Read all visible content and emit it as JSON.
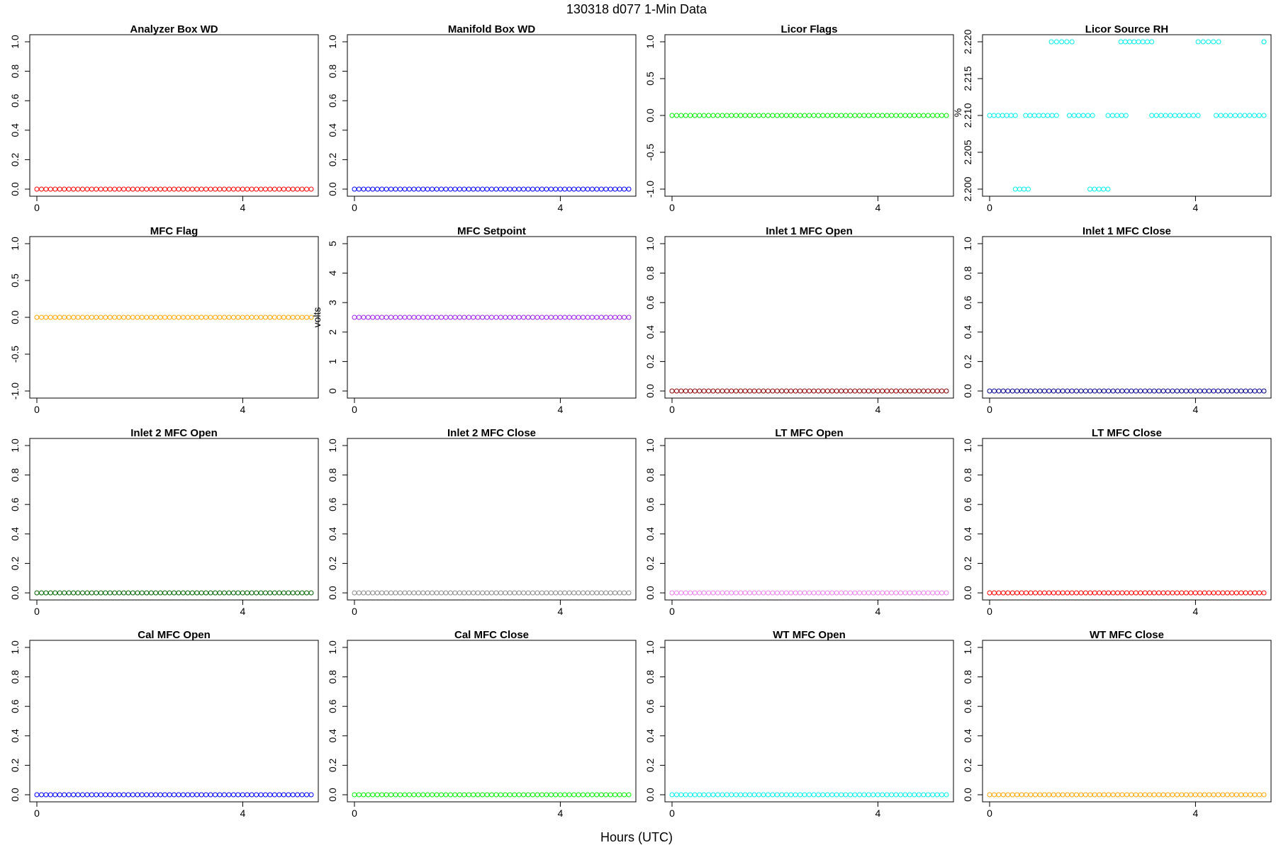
{
  "figure": {
    "title": "130318   d077   1-Min Data",
    "xlabel": "Hours (UTC)"
  },
  "chart_data": [
    {
      "type": "scatter",
      "title": "Analyzer Box WD",
      "ylabel": "",
      "ylim": [
        0,
        1
      ],
      "yticks": [
        0.0,
        0.2,
        0.4,
        0.6,
        0.8,
        1.0
      ],
      "ytick_labels": [
        "0.0",
        "0.2",
        "0.4",
        "0.6",
        "0.8",
        "1.0"
      ],
      "xlim": [
        0,
        5.33
      ],
      "xticks": [
        0,
        4
      ],
      "xtick_labels": [
        "0",
        "4"
      ],
      "color": "#ff0000",
      "series": [
        {
          "segments": [
            {
              "x0": 0.0,
              "x1": 5.33,
              "y": 0
            }
          ]
        }
      ]
    },
    {
      "type": "scatter",
      "title": "Manifold Box WD",
      "ylabel": "",
      "ylim": [
        0,
        1
      ],
      "yticks": [
        0.0,
        0.2,
        0.4,
        0.6,
        0.8,
        1.0
      ],
      "ytick_labels": [
        "0.0",
        "0.2",
        "0.4",
        "0.6",
        "0.8",
        "1.0"
      ],
      "xlim": [
        0,
        5.33
      ],
      "xticks": [
        0,
        4
      ],
      "xtick_labels": [
        "0",
        "4"
      ],
      "color": "#0000ff",
      "series": [
        {
          "segments": [
            {
              "x0": 0.0,
              "x1": 5.33,
              "y": 0
            }
          ]
        }
      ]
    },
    {
      "type": "scatter",
      "title": "Licor Flags",
      "ylabel": "",
      "ylim": [
        -1,
        1
      ],
      "yticks": [
        -1.0,
        -0.5,
        0.0,
        0.5,
        1.0
      ],
      "ytick_labels": [
        "-1.0",
        "-0.5",
        "0.0",
        "0.5",
        "1.0"
      ],
      "xlim": [
        0,
        5.33
      ],
      "xticks": [
        0,
        4
      ],
      "xtick_labels": [
        "0",
        "4"
      ],
      "color": "#00ee00",
      "series": [
        {
          "segments": [
            {
              "x0": 0.0,
              "x1": 5.33,
              "y": 0
            }
          ]
        }
      ]
    },
    {
      "type": "scatter",
      "title": "Licor Source RH",
      "ylabel": "%",
      "ylim": [
        2.2,
        2.22
      ],
      "yticks": [
        2.2,
        2.205,
        2.21,
        2.215,
        2.22
      ],
      "ytick_labels": [
        "2.200",
        "2.205",
        "2.210",
        "2.215",
        "2.220"
      ],
      "xlim": [
        0,
        5.33
      ],
      "xticks": [
        0,
        4
      ],
      "xtick_labels": [
        "0",
        "4"
      ],
      "color": "#00eeee",
      "series": [
        {
          "segments": [
            {
              "x0": 0.0,
              "x1": 0.5,
              "y": 2.21
            },
            {
              "x0": 0.5,
              "x1": 0.75,
              "y": 2.2
            },
            {
              "x0": 0.7,
              "x1": 1.3,
              "y": 2.21
            },
            {
              "x0": 1.2,
              "x1": 1.6,
              "y": 2.22
            },
            {
              "x0": 1.55,
              "x1": 2.0,
              "y": 2.21
            },
            {
              "x0": 1.95,
              "x1": 2.3,
              "y": 2.2
            },
            {
              "x0": 2.3,
              "x1": 2.65,
              "y": 2.21
            },
            {
              "x0": 2.55,
              "x1": 3.15,
              "y": 2.22
            },
            {
              "x0": 3.15,
              "x1": 4.05,
              "y": 2.21
            },
            {
              "x0": 4.05,
              "x1": 4.45,
              "y": 2.22
            },
            {
              "x0": 4.4,
              "x1": 5.33,
              "y": 2.21
            },
            {
              "x0": 5.33,
              "x1": 5.33,
              "y": 2.22
            }
          ]
        }
      ]
    },
    {
      "type": "scatter",
      "title": "MFC Flag",
      "ylabel": "",
      "ylim": [
        -1,
        1
      ],
      "yticks": [
        -1.0,
        -0.5,
        0.0,
        0.5,
        1.0
      ],
      "ytick_labels": [
        "-1.0",
        "-0.5",
        "0.0",
        "0.5",
        "1.0"
      ],
      "xlim": [
        0,
        5.33
      ],
      "xticks": [
        0,
        4
      ],
      "xtick_labels": [
        "0",
        "4"
      ],
      "color": "#ffa500",
      "series": [
        {
          "segments": [
            {
              "x0": 0.0,
              "x1": 5.33,
              "y": 0
            }
          ]
        }
      ]
    },
    {
      "type": "scatter",
      "title": "MFC Setpoint",
      "ylabel": "volts",
      "ylim": [
        0,
        5
      ],
      "yticks": [
        0,
        1,
        2,
        3,
        4,
        5
      ],
      "ytick_labels": [
        "0",
        "1",
        "2",
        "3",
        "4",
        "5"
      ],
      "xlim": [
        0,
        5.33
      ],
      "xticks": [
        0,
        4
      ],
      "xtick_labels": [
        "0",
        "4"
      ],
      "color": "#a020f0",
      "series": [
        {
          "segments": [
            {
              "x0": 0.0,
              "x1": 5.33,
              "y": 2.5
            }
          ]
        }
      ]
    },
    {
      "type": "scatter",
      "title": "Inlet 1 MFC Open",
      "ylabel": "",
      "ylim": [
        0,
        1
      ],
      "yticks": [
        0.0,
        0.2,
        0.4,
        0.6,
        0.8,
        1.0
      ],
      "ytick_labels": [
        "0.0",
        "0.2",
        "0.4",
        "0.6",
        "0.8",
        "1.0"
      ],
      "xlim": [
        0,
        5.33
      ],
      "xticks": [
        0,
        4
      ],
      "xtick_labels": [
        "0",
        "4"
      ],
      "color": "#8b0000",
      "series": [
        {
          "segments": [
            {
              "x0": 0.0,
              "x1": 5.33,
              "y": 0
            }
          ]
        }
      ]
    },
    {
      "type": "scatter",
      "title": "Inlet 1 MFC Close",
      "ylabel": "",
      "ylim": [
        0,
        1
      ],
      "yticks": [
        0.0,
        0.2,
        0.4,
        0.6,
        0.8,
        1.0
      ],
      "ytick_labels": [
        "0.0",
        "0.2",
        "0.4",
        "0.6",
        "0.8",
        "1.0"
      ],
      "xlim": [
        0,
        5.33
      ],
      "xticks": [
        0,
        4
      ],
      "xtick_labels": [
        "0",
        "4"
      ],
      "color": "#00008b",
      "series": [
        {
          "segments": [
            {
              "x0": 0.0,
              "x1": 5.33,
              "y": 0
            }
          ]
        }
      ]
    },
    {
      "type": "scatter",
      "title": "Inlet 2 MFC Open",
      "ylabel": "",
      "ylim": [
        0,
        1
      ],
      "yticks": [
        0.0,
        0.2,
        0.4,
        0.6,
        0.8,
        1.0
      ],
      "ytick_labels": [
        "0.0",
        "0.2",
        "0.4",
        "0.6",
        "0.8",
        "1.0"
      ],
      "xlim": [
        0,
        5.33
      ],
      "xticks": [
        0,
        4
      ],
      "xtick_labels": [
        "0",
        "4"
      ],
      "color": "#006400",
      "series": [
        {
          "segments": [
            {
              "x0": 0.0,
              "x1": 5.33,
              "y": 0
            }
          ]
        }
      ]
    },
    {
      "type": "scatter",
      "title": "Inlet 2 MFC Close",
      "ylabel": "",
      "ylim": [
        0,
        1
      ],
      "yticks": [
        0.0,
        0.2,
        0.4,
        0.6,
        0.8,
        1.0
      ],
      "ytick_labels": [
        "0.0",
        "0.2",
        "0.4",
        "0.6",
        "0.8",
        "1.0"
      ],
      "xlim": [
        0,
        5.33
      ],
      "xticks": [
        0,
        4
      ],
      "xtick_labels": [
        "0",
        "4"
      ],
      "color": "#8c8c8c",
      "series": [
        {
          "segments": [
            {
              "x0": 0.0,
              "x1": 5.33,
              "y": 0
            }
          ]
        }
      ]
    },
    {
      "type": "scatter",
      "title": "LT MFC Open",
      "ylabel": "",
      "ylim": [
        0,
        1
      ],
      "yticks": [
        0.0,
        0.2,
        0.4,
        0.6,
        0.8,
        1.0
      ],
      "ytick_labels": [
        "0.0",
        "0.2",
        "0.4",
        "0.6",
        "0.8",
        "1.0"
      ],
      "xlim": [
        0,
        5.33
      ],
      "xticks": [
        0,
        4
      ],
      "xtick_labels": [
        "0",
        "4"
      ],
      "color": "#ee82ee",
      "series": [
        {
          "segments": [
            {
              "x0": 0.0,
              "x1": 5.33,
              "y": 0
            }
          ]
        }
      ]
    },
    {
      "type": "scatter",
      "title": "LT MFC Close",
      "ylabel": "",
      "ylim": [
        0,
        1
      ],
      "yticks": [
        0.0,
        0.2,
        0.4,
        0.6,
        0.8,
        1.0
      ],
      "ytick_labels": [
        "0.0",
        "0.2",
        "0.4",
        "0.6",
        "0.8",
        "1.0"
      ],
      "xlim": [
        0,
        5.33
      ],
      "xticks": [
        0,
        4
      ],
      "xtick_labels": [
        "0",
        "4"
      ],
      "color": "#ff0000",
      "series": [
        {
          "segments": [
            {
              "x0": 0.0,
              "x1": 5.33,
              "y": 0
            }
          ]
        }
      ]
    },
    {
      "type": "scatter",
      "title": "Cal MFC Open",
      "ylabel": "",
      "ylim": [
        0,
        1
      ],
      "yticks": [
        0.0,
        0.2,
        0.4,
        0.6,
        0.8,
        1.0
      ],
      "ytick_labels": [
        "0.0",
        "0.2",
        "0.4",
        "0.6",
        "0.8",
        "1.0"
      ],
      "xlim": [
        0,
        5.33
      ],
      "xticks": [
        0,
        4
      ],
      "xtick_labels": [
        "0",
        "4"
      ],
      "color": "#0000ff",
      "series": [
        {
          "segments": [
            {
              "x0": 0.0,
              "x1": 5.33,
              "y": 0
            }
          ]
        }
      ]
    },
    {
      "type": "scatter",
      "title": "Cal MFC Close",
      "ylabel": "",
      "ylim": [
        0,
        1
      ],
      "yticks": [
        0.0,
        0.2,
        0.4,
        0.6,
        0.8,
        1.0
      ],
      "ytick_labels": [
        "0.0",
        "0.2",
        "0.4",
        "0.6",
        "0.8",
        "1.0"
      ],
      "xlim": [
        0,
        5.33
      ],
      "xticks": [
        0,
        4
      ],
      "xtick_labels": [
        "0",
        "4"
      ],
      "color": "#00ee00",
      "series": [
        {
          "segments": [
            {
              "x0": 0.0,
              "x1": 5.33,
              "y": 0
            }
          ]
        }
      ]
    },
    {
      "type": "scatter",
      "title": "WT MFC Open",
      "ylabel": "",
      "ylim": [
        0,
        1
      ],
      "yticks": [
        0.0,
        0.2,
        0.4,
        0.6,
        0.8,
        1.0
      ],
      "ytick_labels": [
        "0.0",
        "0.2",
        "0.4",
        "0.6",
        "0.8",
        "1.0"
      ],
      "xlim": [
        0,
        5.33
      ],
      "xticks": [
        0,
        4
      ],
      "xtick_labels": [
        "0",
        "4"
      ],
      "color": "#00eeee",
      "series": [
        {
          "segments": [
            {
              "x0": 0.0,
              "x1": 5.33,
              "y": 0
            }
          ]
        }
      ]
    },
    {
      "type": "scatter",
      "title": "WT MFC Close",
      "ylabel": "",
      "ylim": [
        0,
        1
      ],
      "yticks": [
        0.0,
        0.2,
        0.4,
        0.6,
        0.8,
        1.0
      ],
      "ytick_labels": [
        "0.0",
        "0.2",
        "0.4",
        "0.6",
        "0.8",
        "1.0"
      ],
      "xlim": [
        0,
        5.33
      ],
      "xticks": [
        0,
        4
      ],
      "xtick_labels": [
        "0",
        "4"
      ],
      "color": "#ffa500",
      "series": [
        {
          "segments": [
            {
              "x0": 0.0,
              "x1": 5.33,
              "y": 0
            }
          ]
        }
      ]
    }
  ]
}
